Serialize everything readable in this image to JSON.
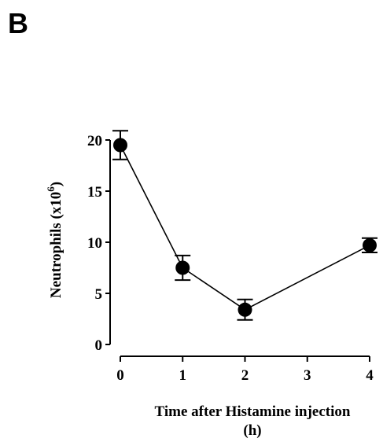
{
  "panel_label": "B",
  "chart_data": {
    "type": "line",
    "title": "",
    "xlabel": "Time after Histamine injection",
    "xlabel_line2": "(h)",
    "ylabel_main": "Neutrophils (x10",
    "ylabel_sup": "6",
    "ylabel_end": ")",
    "xlim": [
      0,
      4
    ],
    "ylim": [
      0,
      20
    ],
    "x_ticks": [
      0,
      1,
      2,
      3,
      4
    ],
    "y_ticks": [
      0,
      5,
      10,
      15,
      20
    ],
    "grid": false,
    "legend": "none",
    "series": [
      {
        "x": [
          0,
          1,
          2,
          4
        ],
        "y": [
          19.5,
          7.5,
          3.4,
          9.7
        ],
        "err": [
          1.4,
          1.2,
          1.0,
          0.7
        ],
        "color": "#000000",
        "marker": "filled-circle"
      }
    ]
  }
}
